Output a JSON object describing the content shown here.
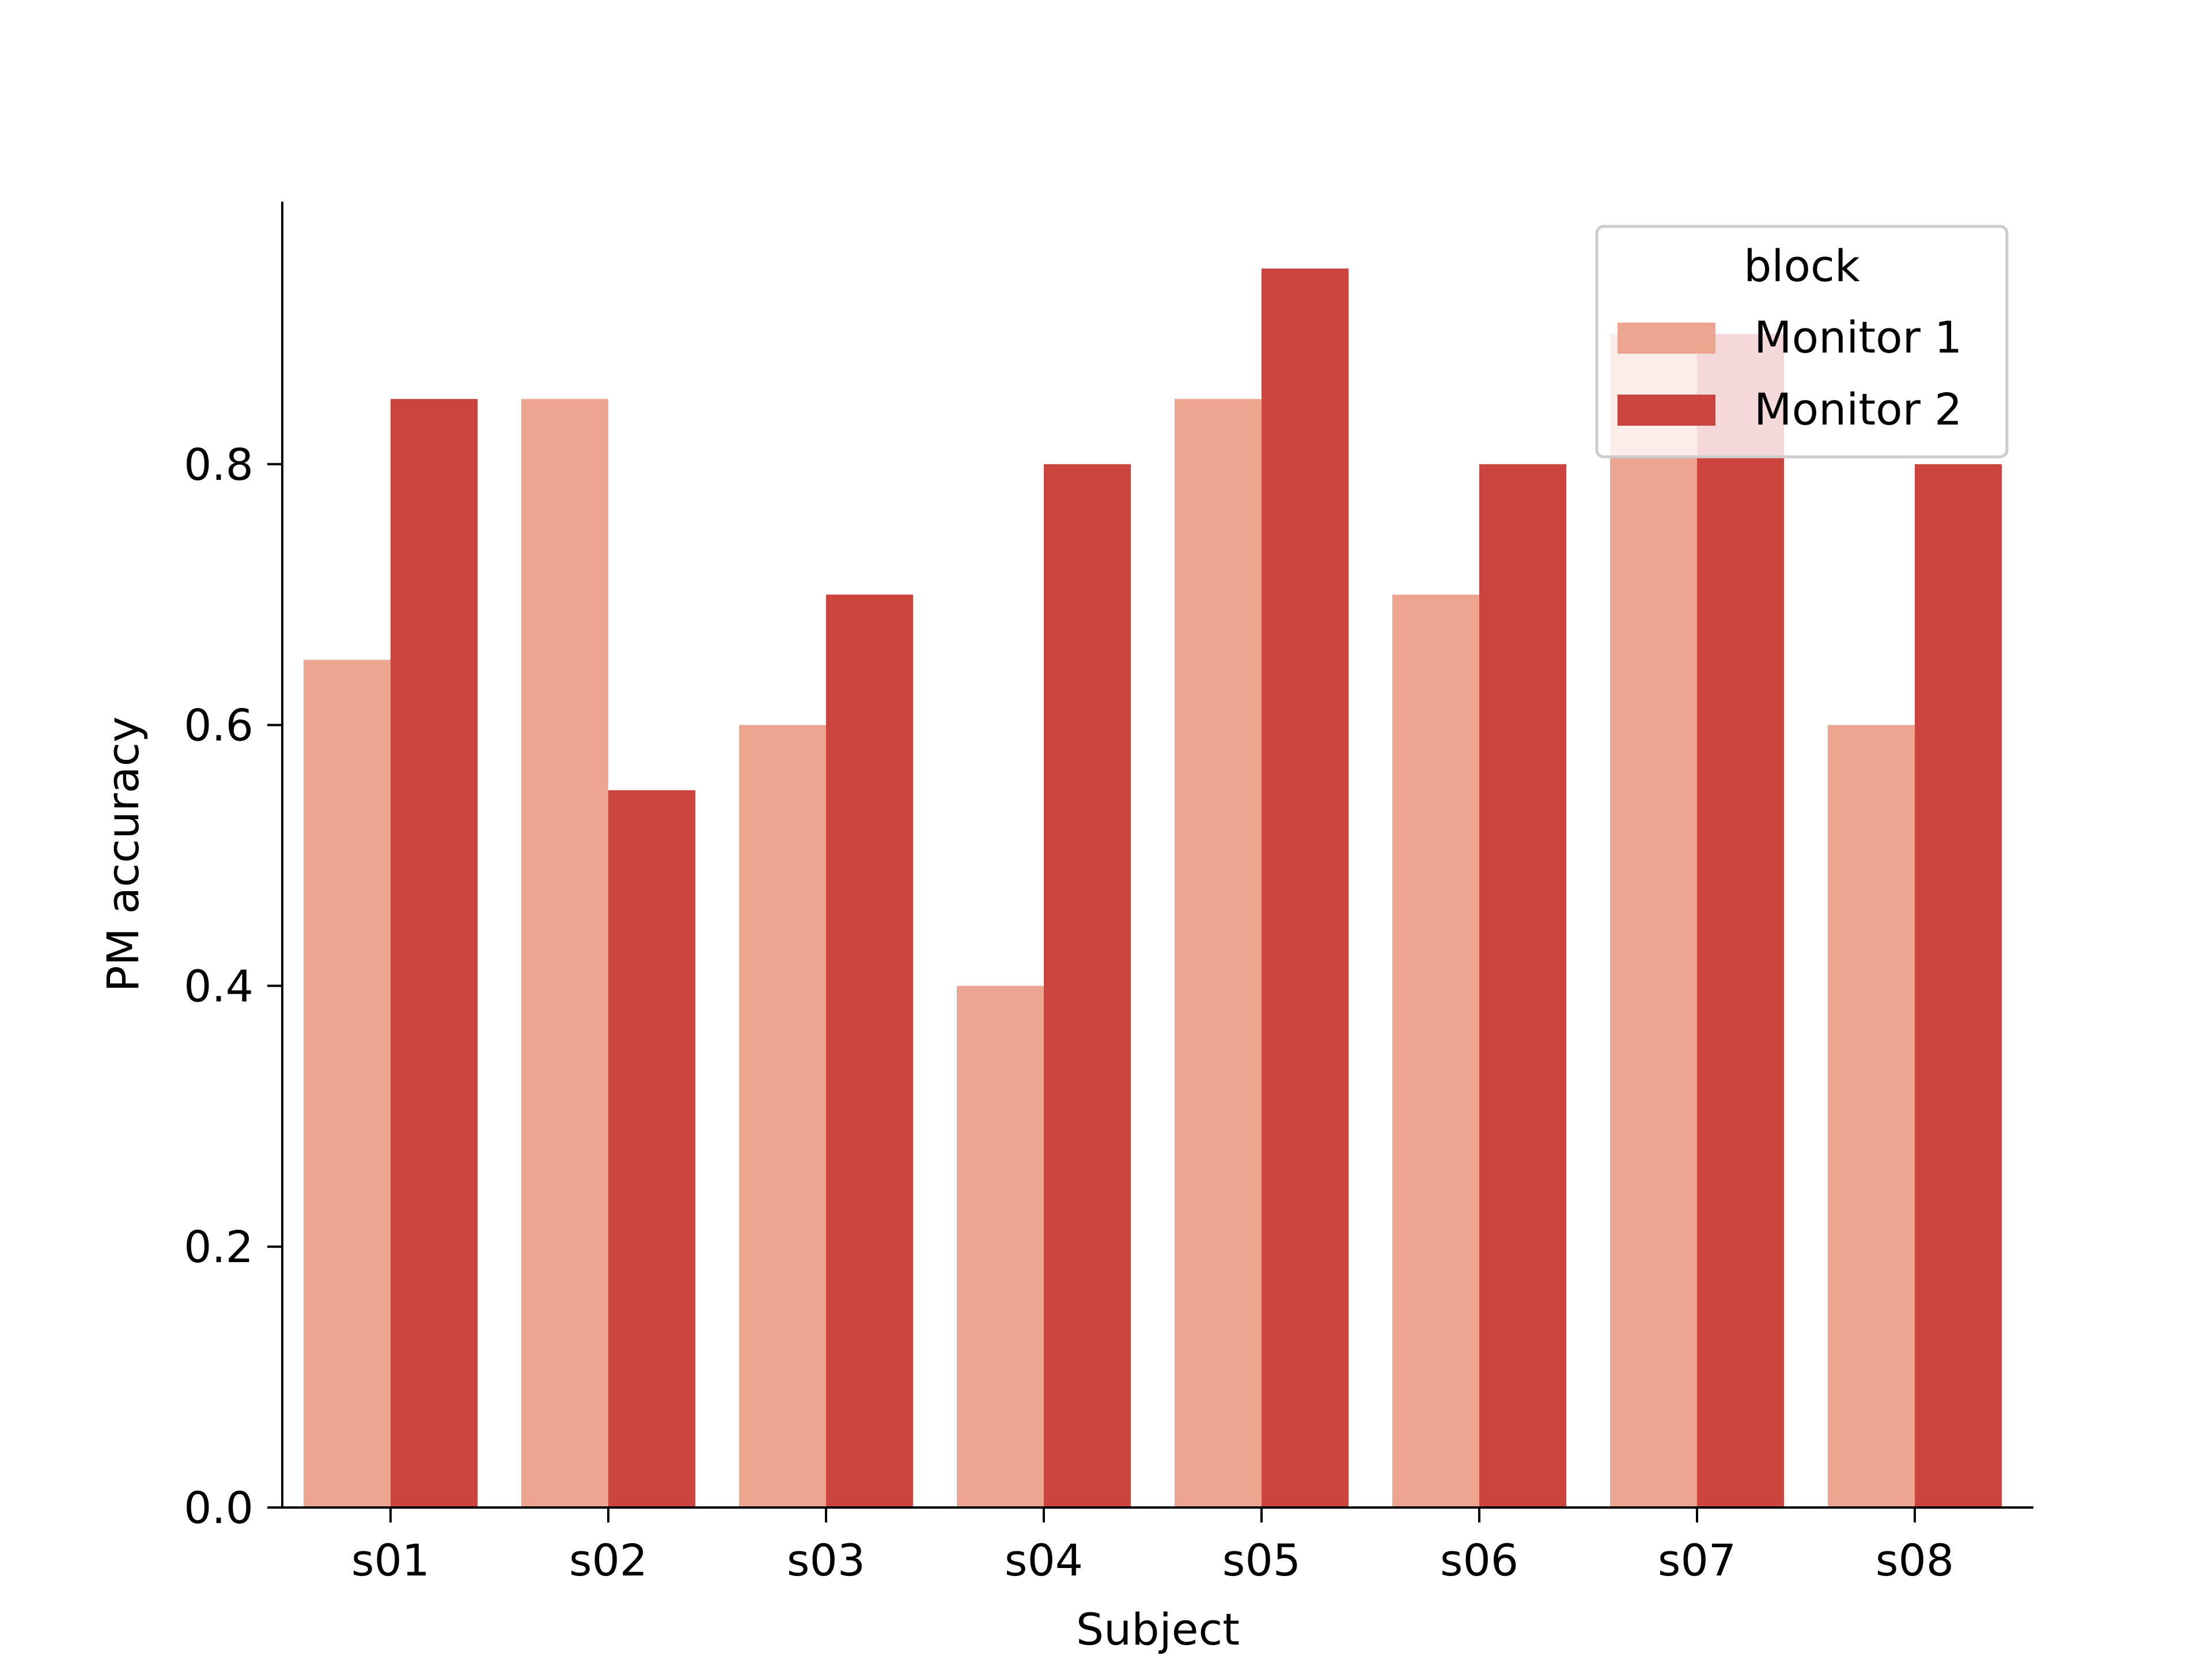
{
  "chart_data": {
    "type": "bar",
    "xlabel": "Subject",
    "ylabel": "PM accuracy",
    "categories": [
      "s01",
      "s02",
      "s03",
      "s04",
      "s05",
      "s06",
      "s07",
      "s08"
    ],
    "series": [
      {
        "name": "Monitor 1",
        "color": "#eca690",
        "values": [
          0.65,
          0.85,
          0.6,
          0.4,
          0.85,
          0.7,
          0.9,
          0.6
        ]
      },
      {
        "name": "Monitor 2",
        "color": "#cb443d",
        "values": [
          0.85,
          0.55,
          0.7,
          0.8,
          0.95,
          0.8,
          0.9,
          0.8
        ]
      }
    ],
    "ylim": [
      0,
      1.0
    ],
    "yticks": [
      0.0,
      0.2,
      0.4,
      0.6,
      0.8
    ],
    "ytick_labels": [
      "0.0",
      "0.2",
      "0.4",
      "0.6",
      "0.8"
    ],
    "grid": false,
    "legend": {
      "title": "block",
      "placement": "top-right"
    }
  }
}
